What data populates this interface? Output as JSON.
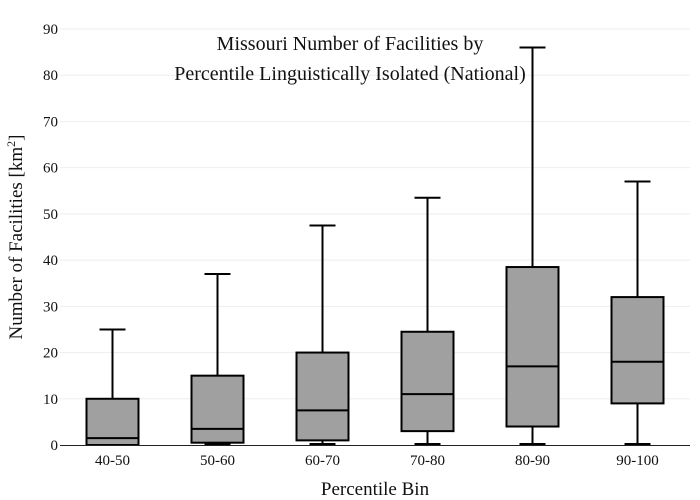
{
  "chart_data": {
    "type": "box",
    "title_lines": [
      "Missouri Number of Facilities by",
      "Percentile Linguistically Isolated (National)"
    ],
    "xlabel": "Percentile Bin",
    "ylabel": {
      "text": "Number of Facilities  [km",
      "superscript": "2",
      "suffix": "]"
    },
    "ylim": [
      0,
      90
    ],
    "yticks": [
      0,
      10,
      20,
      30,
      40,
      50,
      60,
      70,
      80,
      90
    ],
    "grid": true,
    "categories": [
      "40-50",
      "50-60",
      "60-70",
      "70-80",
      "80-90",
      "90-100"
    ],
    "boxes": [
      {
        "min": 0,
        "q1": 0,
        "median": 1.5,
        "q3": 10,
        "max": 25
      },
      {
        "min": 0,
        "q1": 0.5,
        "median": 3.5,
        "q3": 15,
        "max": 37
      },
      {
        "min": 0,
        "q1": 1,
        "median": 7.5,
        "q3": 20,
        "max": 47.5
      },
      {
        "min": 0,
        "q1": 3,
        "median": 11,
        "q3": 24.5,
        "max": 53.5
      },
      {
        "min": 0,
        "q1": 4,
        "median": 17,
        "q3": 38.5,
        "max": 86
      },
      {
        "min": 0,
        "q1": 9,
        "median": 18,
        "q3": 32,
        "max": 57
      }
    ],
    "colors": {
      "box_fill": "#a0a0a0",
      "stroke": "#000000",
      "grid": "#eeeeee",
      "axis": "#222222"
    }
  }
}
